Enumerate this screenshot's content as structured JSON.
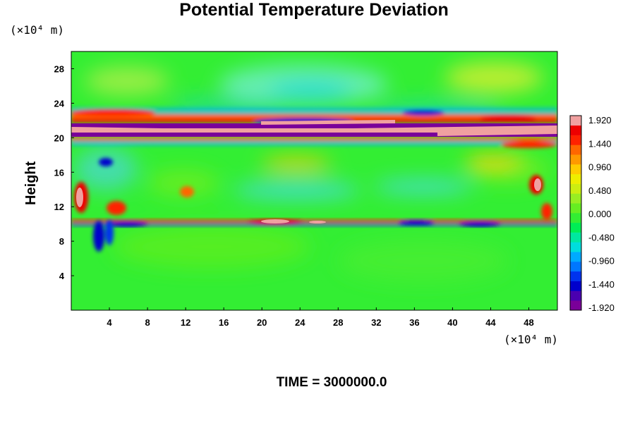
{
  "chart_data": {
    "type": "heatmap",
    "title": "Potential Temperature Deviation",
    "ylabel": "Height",
    "y_unit": "(×10⁴ m)",
    "x_unit": "(×10⁴ m)",
    "footer": "TIME = 3000000.0",
    "xlim": [
      0,
      51
    ],
    "ylim": [
      0,
      30
    ],
    "x_ticks": [
      "4",
      "8",
      "12",
      "16",
      "20",
      "24",
      "28",
      "32",
      "36",
      "40",
      "44",
      "48"
    ],
    "y_ticks": [
      "4",
      "8",
      "12",
      "16",
      "20",
      "24",
      "28"
    ],
    "colorbar": {
      "min": -2.0,
      "max": 2.0,
      "labels": [
        "1.920",
        "1.440",
        "0.960",
        "0.480",
        "0.000",
        "-0.480",
        "-0.960",
        "-1.440",
        "-1.920"
      ],
      "colors": [
        "#7a0099",
        "#4a00b0",
        "#0000cc",
        "#0033ee",
        "#0077ff",
        "#00aaff",
        "#00dddd",
        "#00e8a0",
        "#00ee55",
        "#33ee33",
        "#66ee22",
        "#99ee22",
        "#ccee11",
        "#eeee00",
        "#ffcc00",
        "#ff9900",
        "#ff6600",
        "#ff2200",
        "#ee0000",
        "#f0a0a0"
      ]
    },
    "features": [
      {
        "name": "upper warm band",
        "y": 20.3,
        "value": 2.0
      },
      {
        "name": "upper cold band",
        "y": 21.0,
        "value": -2.0
      },
      {
        "name": "mid-level disturbance band",
        "y": 10.0,
        "value": 1.5
      },
      {
        "name": "background",
        "value": 0.0
      }
    ]
  }
}
